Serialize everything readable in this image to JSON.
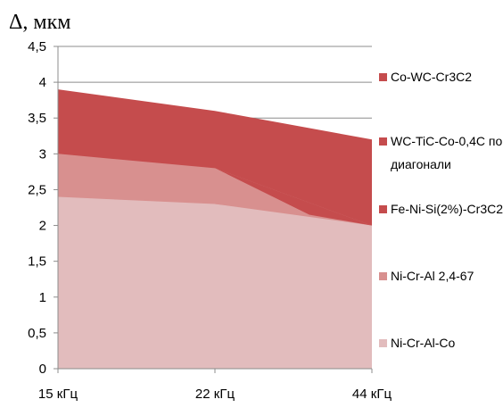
{
  "chart_data": {
    "type": "area",
    "title": "Δ, мкм",
    "categories": [
      "15 кГц",
      "22 кГц",
      "44 кГц"
    ],
    "y_ticks": [
      "0",
      "0,5",
      "1",
      "1,5",
      "2",
      "2,5",
      "3",
      "3,5",
      "4",
      "4,5"
    ],
    "ylim": [
      0,
      4.5
    ],
    "grid": true,
    "legend_position": "right",
    "series": [
      {
        "name": "Ni-Cr-Al-Co",
        "values": [
          2.4,
          2.3,
          2.0
        ],
        "color": "#e2bcbd",
        "legend_lines": [
          "Ni-Cr-Al-Co"
        ]
      },
      {
        "name": "Ni-Cr-Al 2,4-67",
        "values": [
          3.0,
          2.8,
          2.0
        ],
        "color": "#d8908f",
        "legend_lines": [
          "Ni-Cr-Al 2,4-67"
        ]
      },
      {
        "name": "Fe-Ni-Si(2%)-Cr3C2",
        "values": [
          3.0,
          2.8,
          2.0
        ],
        "color": "#c54c4d",
        "legend_lines": [
          "Fe-Ni-Si(2%)-Cr3C2"
        ]
      },
      {
        "name": "WC-TiC-Co-0,4C по диагонали",
        "values": [
          3.0,
          2.8,
          2.0
        ],
        "color": "#c54c4d",
        "legend_lines": [
          "WC-TiC-Co-0,4C по",
          "диагонали"
        ]
      },
      {
        "name": "Co-WC-Cr3C2",
        "values": [
          3.9,
          3.6,
          3.2
        ],
        "color": "#c54c4d",
        "legend_lines": [
          "Co-WC-Cr3C2"
        ]
      }
    ],
    "legend_order": [
      4,
      3,
      2,
      1,
      0
    ]
  }
}
